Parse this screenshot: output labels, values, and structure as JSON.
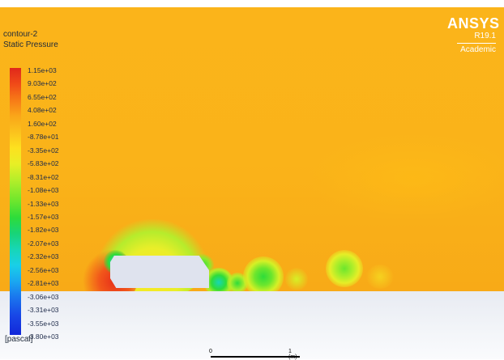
{
  "legend": {
    "contour_name": "contour-2",
    "variable": "Static Pressure",
    "units": "[pascal]",
    "ticks": [
      "1.15e+03",
      "9.03e+02",
      "6.55e+02",
      "4.08e+02",
      "1.60e+02",
      "-8.78e+01",
      "-3.35e+02",
      "-5.83e+02",
      "-8.31e+02",
      "-1.08e+03",
      "-1.33e+03",
      "-1.57e+03",
      "-1.82e+03",
      "-2.07e+03",
      "-2.32e+03",
      "-2.56e+03",
      "-2.81e+03",
      "-3.06e+03",
      "-3.31e+03",
      "-3.55e+03",
      "-3.80e+03"
    ]
  },
  "logo": {
    "brand": "ANSYS",
    "version": "R19.1",
    "edition": "Academic"
  },
  "scale": {
    "start": "0",
    "end": "1 (m)"
  },
  "colors": {
    "background": "#fab319",
    "ground": "#eef0f6",
    "max": "#e0281b",
    "min": "#1228d9"
  }
}
